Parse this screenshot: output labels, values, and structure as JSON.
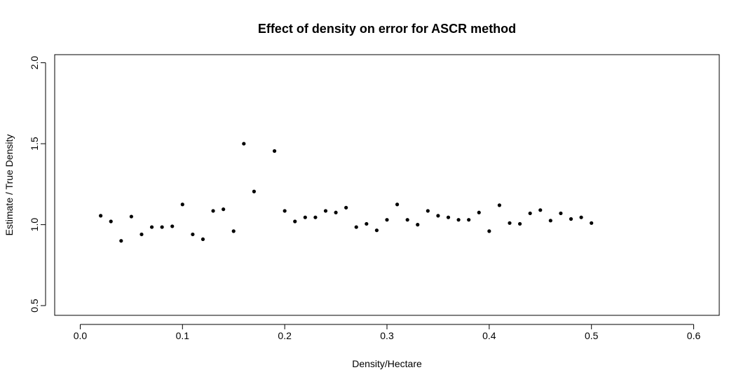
{
  "chart_data": {
    "type": "scatter",
    "title": "Effect of density on error for ASCR method",
    "xlabel": "Density/Hectare",
    "ylabel": "Estimate / True Density",
    "xlim": [
      -0.025,
      0.625
    ],
    "ylim": [
      0.44,
      2.05
    ],
    "x_ticks": [
      0.0,
      0.1,
      0.2,
      0.3,
      0.4,
      0.5,
      0.6
    ],
    "x_tick_labels": [
      "0.0",
      "0.1",
      "0.2",
      "0.3",
      "0.4",
      "0.5",
      "0.6"
    ],
    "y_ticks": [
      0.5,
      1.0,
      1.5,
      2.0
    ],
    "y_tick_labels": [
      "0.5",
      "1.0",
      "1.5",
      "2.0"
    ],
    "grid": false,
    "legend": "none",
    "point_color": "#000000",
    "series": [
      {
        "x": [
          0.02,
          0.03,
          0.04,
          0.05,
          0.06,
          0.07,
          0.08,
          0.09,
          0.1,
          0.11,
          0.12,
          0.13,
          0.14,
          0.15,
          0.16,
          0.17,
          0.19,
          0.2,
          0.21,
          0.22,
          0.23,
          0.24,
          0.25,
          0.26,
          0.27,
          0.28,
          0.29,
          0.3,
          0.31,
          0.32,
          0.33,
          0.34,
          0.35,
          0.36,
          0.37,
          0.38,
          0.39,
          0.4,
          0.41,
          0.42,
          0.43,
          0.44,
          0.45,
          0.46,
          0.47,
          0.48,
          0.49,
          0.5
        ],
        "y": [
          1.055,
          1.02,
          0.9,
          1.05,
          0.94,
          0.985,
          0.985,
          0.99,
          1.125,
          0.94,
          0.91,
          1.085,
          1.095,
          0.96,
          1.5,
          1.205,
          1.455,
          1.085,
          1.02,
          1.045,
          1.045,
          1.085,
          1.075,
          1.105,
          0.985,
          1.005,
          0.965,
          1.03,
          1.125,
          1.03,
          1.0,
          1.085,
          1.055,
          1.045,
          1.03,
          1.03,
          1.075,
          0.96,
          1.12,
          1.01,
          1.005,
          1.07,
          1.09,
          1.025,
          1.07,
          1.035,
          1.045,
          1.01
        ]
      }
    ]
  }
}
